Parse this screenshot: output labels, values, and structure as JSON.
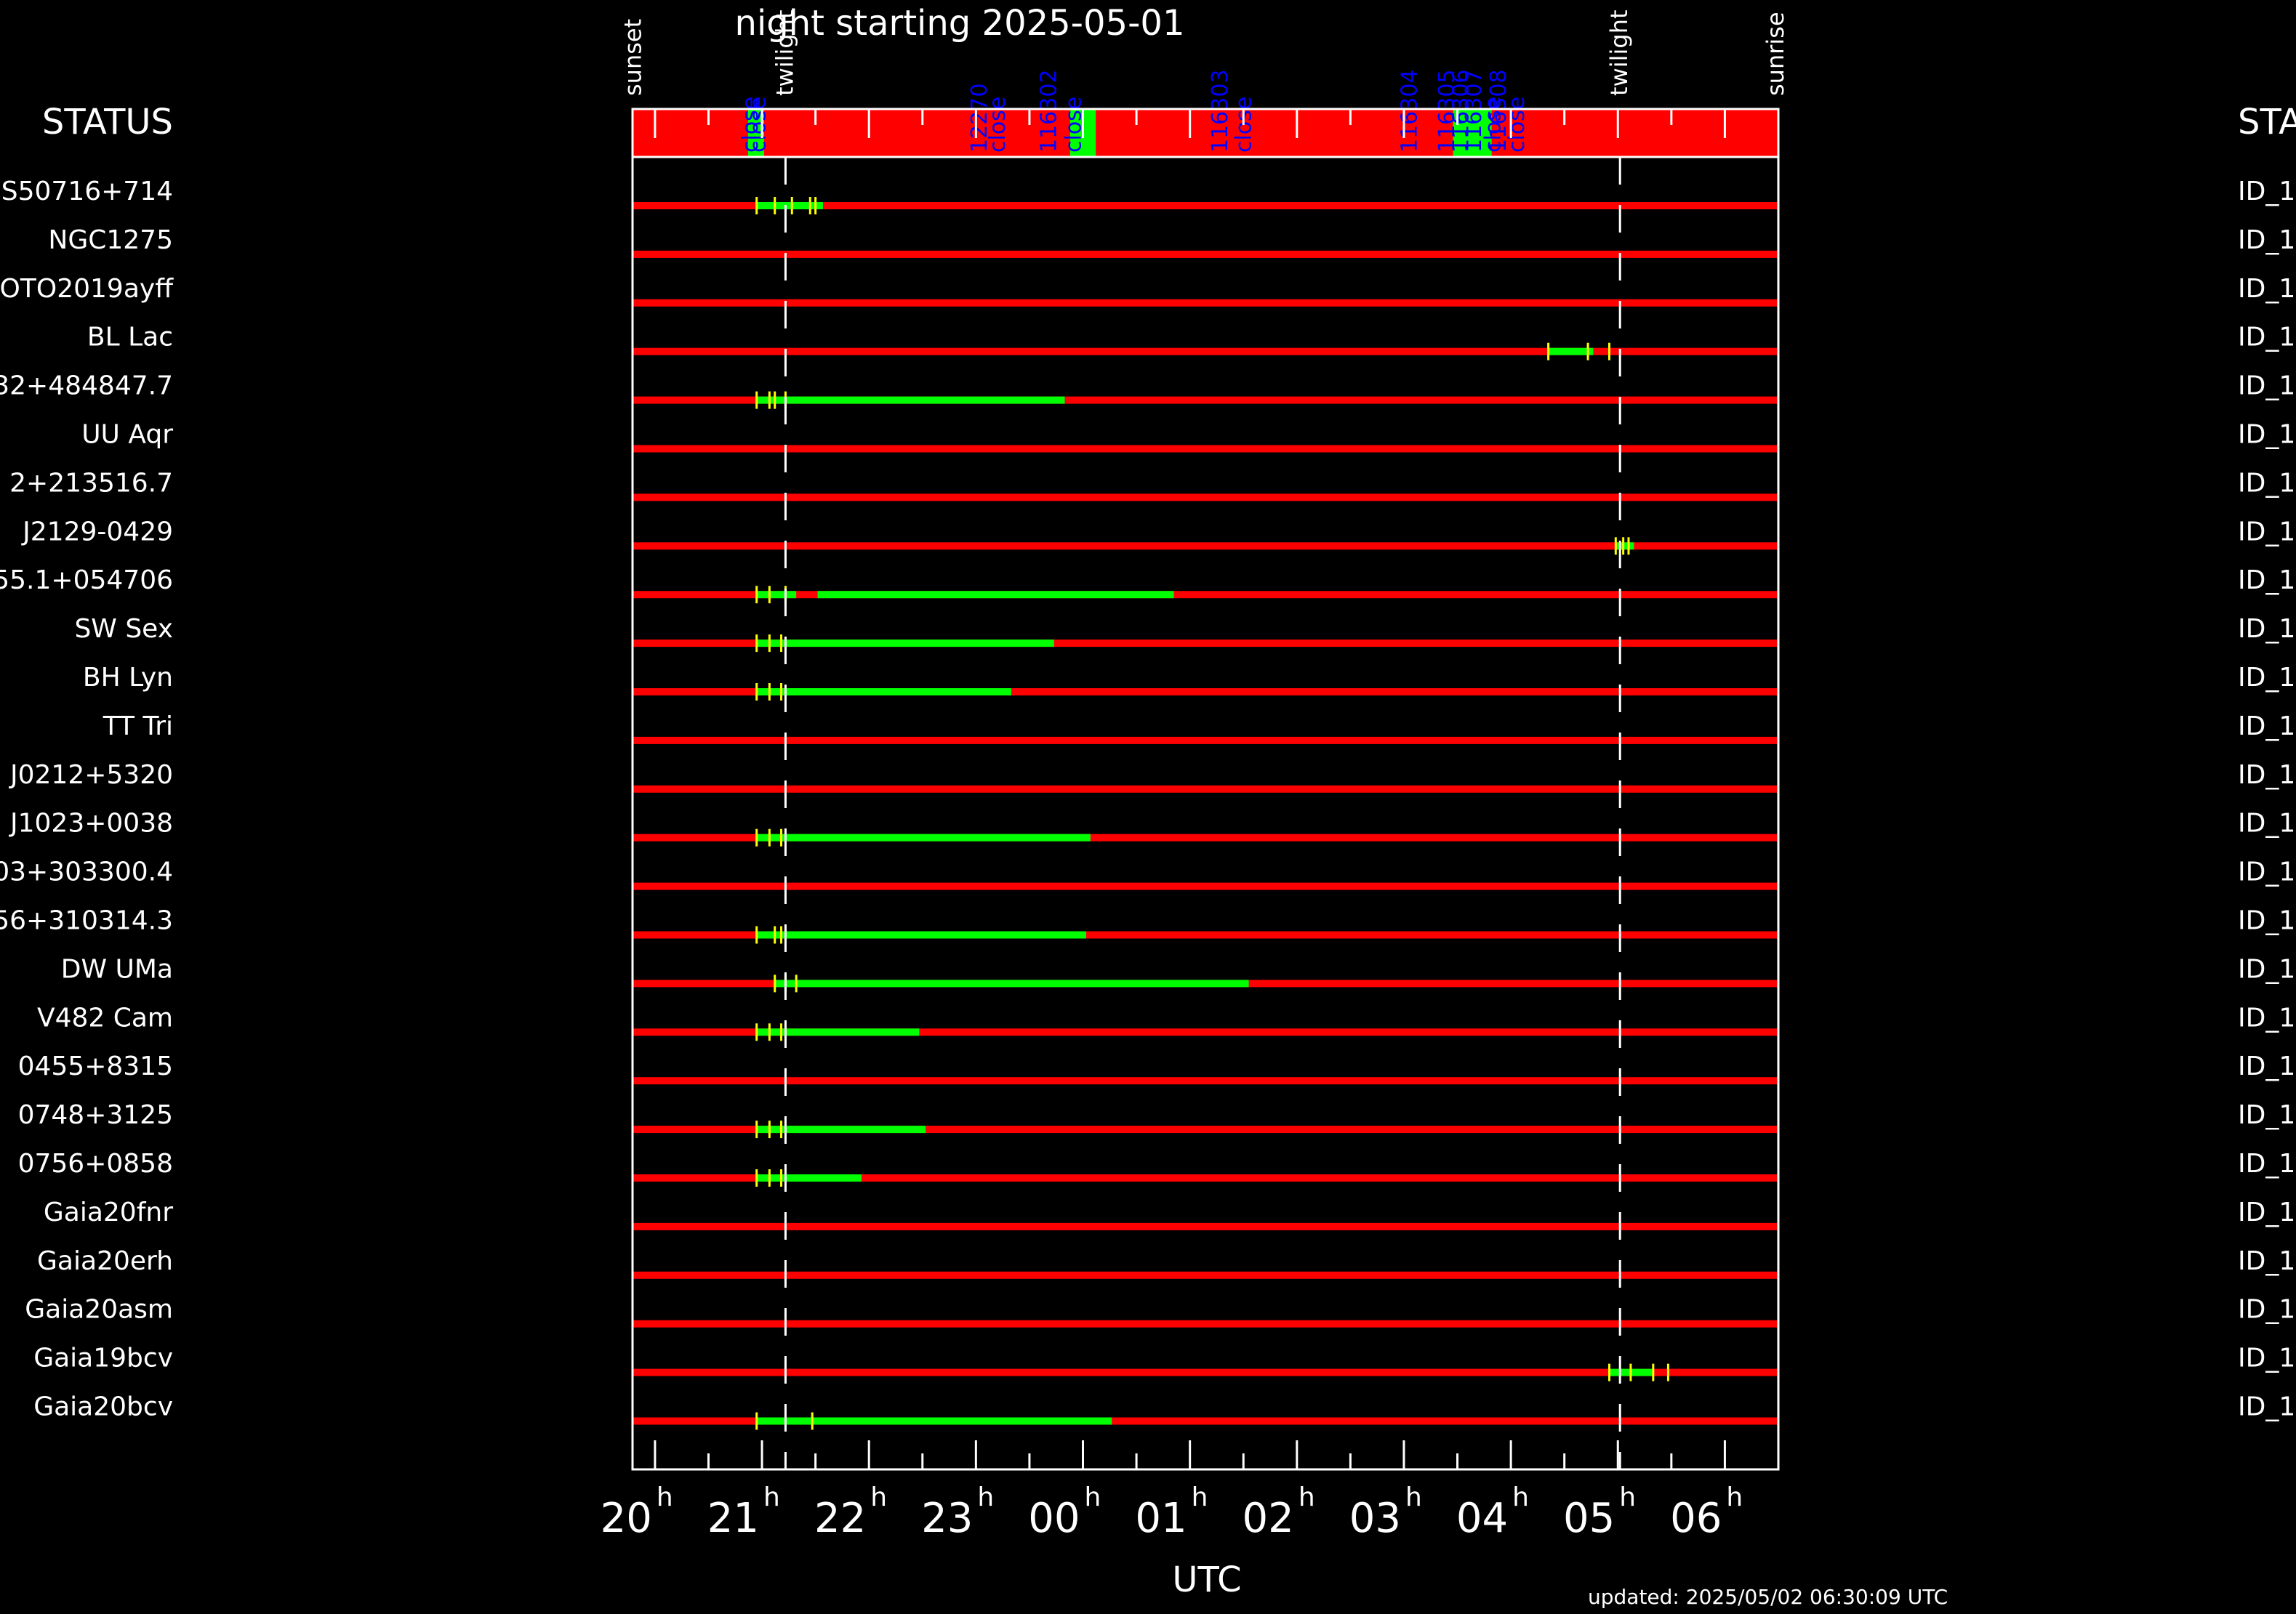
{
  "chart_data": {
    "type": "timeline",
    "title": "night starting 2025-05-01",
    "xlabel": "UTC",
    "updated": "updated: 2025/05/02 06:30:09 UTC",
    "status_header": "STATUS",
    "status_header_right": "STAT",
    "x_range_hours": [
      19.79,
      30.5
    ],
    "ticks": [
      "20",
      "21",
      "22",
      "23",
      "00",
      "01",
      "02",
      "03",
      "04",
      "05",
      "06"
    ],
    "tick_suffix": "h",
    "events": [
      {
        "label": "sunset",
        "t": 19.8,
        "line": false
      },
      {
        "label": "twilight",
        "t": 21.22,
        "line": true
      },
      {
        "label": "twilight",
        "t": 29.02,
        "line": true
      },
      {
        "label": "sunrise",
        "t": 30.48,
        "line": false
      }
    ],
    "dome_bands": [
      {
        "start": 20.87,
        "end": 21.02
      },
      {
        "start": 23.88,
        "end": 24.12
      },
      {
        "start": 27.46,
        "end": 27.82
      }
    ],
    "dome_labels": [
      {
        "text": "close",
        "t": 20.96
      },
      {
        "text": "close",
        "t": 21.03
      },
      {
        "text": "12270",
        "t": 23.1
      },
      {
        "text": "close",
        "t": 23.27
      },
      {
        "text": "116302",
        "t": 23.75
      },
      {
        "text": "close",
        "t": 23.98
      },
      {
        "text": "116303",
        "t": 25.35
      },
      {
        "text": "close",
        "t": 25.57
      },
      {
        "text": "116304",
        "t": 27.12
      },
      {
        "text": "116305",
        "t": 27.47
      },
      {
        "text": "116306",
        "t": 27.6
      },
      {
        "text": "116307",
        "t": 27.72
      },
      {
        "text": "close",
        "t": 27.9
      },
      {
        "text": "116308",
        "t": 27.95
      },
      {
        "text": "close",
        "t": 28.12
      }
    ],
    "rows": [
      {
        "name": "S50716+714",
        "id": "ID_1",
        "obs": [
          [
            20.95,
            21.57
          ]
        ],
        "marks": [
          20.95,
          21.12,
          21.28,
          21.45,
          21.5
        ]
      },
      {
        "name": "NGC1275",
        "id": "ID_1",
        "obs": [],
        "marks": []
      },
      {
        "name": "OTO2019ayff",
        "id": "ID_1",
        "obs": [],
        "marks": []
      },
      {
        "name": "BL Lac",
        "id": "ID_1",
        "obs": [
          [
            28.35,
            28.77
          ]
        ],
        "marks": [
          28.35,
          28.72,
          28.92
        ]
      },
      {
        "name": "32+484847.7",
        "id": "ID_1",
        "obs": [
          [
            20.95,
            23.83
          ]
        ],
        "marks": [
          20.95,
          21.07,
          21.12,
          21.22
        ]
      },
      {
        "name": "UU Aqr",
        "id": "ID_1",
        "obs": [],
        "marks": []
      },
      {
        "name": "2+213516.7",
        "id": "ID_1",
        "obs": [],
        "marks": []
      },
      {
        "name": "J2129-0429",
        "id": "ID_1",
        "obs": [
          [
            28.98,
            29.15
          ]
        ],
        "marks": [
          28.98,
          29.05,
          29.1
        ]
      },
      {
        "name": "55.1+054706",
        "id": "ID_1",
        "obs": [
          [
            20.95,
            21.32
          ],
          [
            21.52,
            24.85
          ]
        ],
        "marks": [
          20.95,
          21.07,
          21.22
        ]
      },
      {
        "name": "SW Sex",
        "id": "ID_1",
        "obs": [
          [
            20.95,
            23.73
          ]
        ],
        "marks": [
          20.95,
          21.07,
          21.18
        ]
      },
      {
        "name": "BH Lyn",
        "id": "ID_1",
        "obs": [
          [
            20.95,
            23.33
          ]
        ],
        "marks": [
          20.95,
          21.07,
          21.18
        ]
      },
      {
        "name": "TT Tri",
        "id": "ID_1",
        "obs": [],
        "marks": []
      },
      {
        "name": "J0212+5320",
        "id": "ID_1",
        "obs": [],
        "marks": []
      },
      {
        "name": "J1023+0038",
        "id": "ID_1",
        "obs": [
          [
            20.95,
            24.07
          ]
        ],
        "marks": [
          20.95,
          21.07,
          21.18
        ]
      },
      {
        "name": "03+303300.4",
        "id": "ID_1",
        "obs": [],
        "marks": []
      },
      {
        "name": "56+310314.3",
        "id": "ID_1",
        "obs": [
          [
            20.95,
            24.03
          ]
        ],
        "marks": [
          20.95,
          21.12,
          21.18
        ]
      },
      {
        "name": "DW UMa",
        "id": "ID_1",
        "obs": [
          [
            21.12,
            25.55
          ]
        ],
        "marks": [
          21.12,
          21.22,
          21.32
        ]
      },
      {
        "name": "V482 Cam",
        "id": "ID_1",
        "obs": [
          [
            20.95,
            22.47
          ]
        ],
        "marks": [
          20.95,
          21.07,
          21.18
        ]
      },
      {
        "name": "0455+8315",
        "id": "ID_1",
        "obs": [],
        "marks": []
      },
      {
        "name": "0748+3125",
        "id": "ID_1",
        "obs": [
          [
            20.95,
            22.53
          ]
        ],
        "marks": [
          20.95,
          21.07,
          21.18
        ]
      },
      {
        "name": "0756+0858",
        "id": "ID_1",
        "obs": [
          [
            20.95,
            21.93
          ]
        ],
        "marks": [
          20.95,
          21.07,
          21.18
        ]
      },
      {
        "name": "Gaia20fnr",
        "id": "ID_1",
        "obs": [],
        "marks": []
      },
      {
        "name": "Gaia20erh",
        "id": "ID_1",
        "obs": [],
        "marks": []
      },
      {
        "name": "Gaia20asm",
        "id": "ID_1",
        "obs": [],
        "marks": []
      },
      {
        "name": "Gaia19bcv",
        "id": "ID_1",
        "obs": [
          [
            28.92,
            29.33
          ]
        ],
        "marks": [
          28.92,
          29.12,
          29.33,
          29.47
        ]
      },
      {
        "name": "Gaia20bcv",
        "id": "ID_1",
        "obs": [
          [
            20.95,
            24.27
          ]
        ],
        "marks": [
          20.95,
          21.47
        ]
      }
    ],
    "colors": {
      "background": "#000000",
      "unobserved": "#ff0000",
      "observed": "#00ff00",
      "mark": "#ffff00",
      "dome_label": "#0000ff",
      "axes": "#ffffff"
    }
  }
}
